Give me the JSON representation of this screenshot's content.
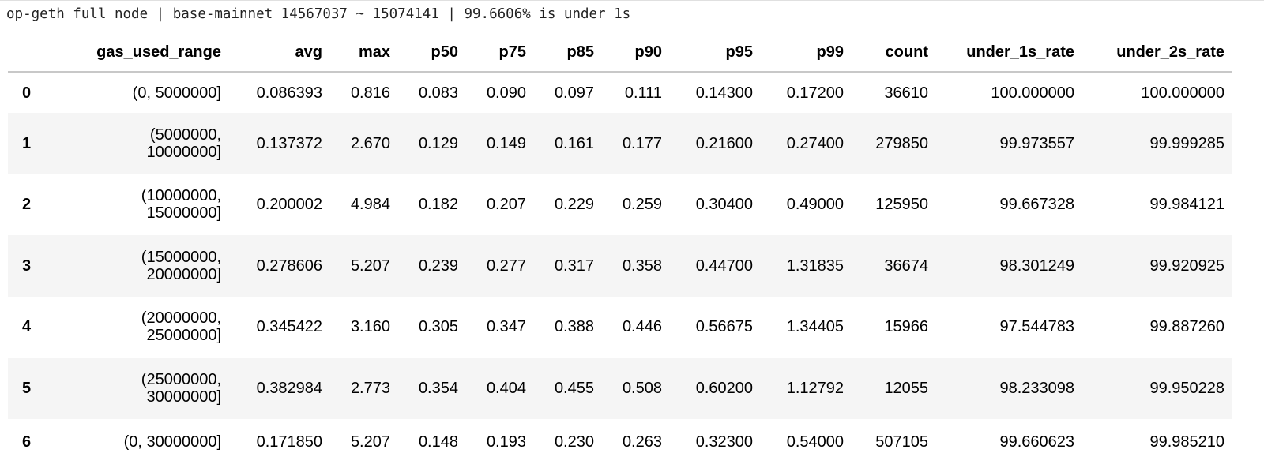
{
  "title": "op-geth full node | base-mainnet 14567037 ~ 15074141 | 99.6606% is under 1s",
  "table": {
    "columns": [
      "",
      "gas_used_range",
      "avg",
      "max",
      "p50",
      "p75",
      "p85",
      "p90",
      "p95",
      "p99",
      "count",
      "under_1s_rate",
      "under_2s_rate"
    ],
    "rows": [
      [
        "0",
        "(0, 5000000]",
        "0.086393",
        "0.816",
        "0.083",
        "0.090",
        "0.097",
        "0.111",
        "0.14300",
        "0.17200",
        "36610",
        "100.000000",
        "100.000000"
      ],
      [
        "1",
        "(5000000, 10000000]",
        "0.137372",
        "2.670",
        "0.129",
        "0.149",
        "0.161",
        "0.177",
        "0.21600",
        "0.27400",
        "279850",
        "99.973557",
        "99.999285"
      ],
      [
        "2",
        "(10000000, 15000000]",
        "0.200002",
        "4.984",
        "0.182",
        "0.207",
        "0.229",
        "0.259",
        "0.30400",
        "0.49000",
        "125950",
        "99.667328",
        "99.984121"
      ],
      [
        "3",
        "(15000000, 20000000]",
        "0.278606",
        "5.207",
        "0.239",
        "0.277",
        "0.317",
        "0.358",
        "0.44700",
        "1.31835",
        "36674",
        "98.301249",
        "99.920925"
      ],
      [
        "4",
        "(20000000, 25000000]",
        "0.345422",
        "3.160",
        "0.305",
        "0.347",
        "0.388",
        "0.446",
        "0.56675",
        "1.34405",
        "15966",
        "97.544783",
        "99.887260"
      ],
      [
        "5",
        "(25000000, 30000000]",
        "0.382984",
        "2.773",
        "0.354",
        "0.404",
        "0.455",
        "0.508",
        "0.60200",
        "1.12792",
        "12055",
        "98.233098",
        "99.950228"
      ],
      [
        "6",
        "(0, 30000000]",
        "0.171850",
        "5.207",
        "0.148",
        "0.193",
        "0.230",
        "0.263",
        "0.32300",
        "0.54000",
        "507105",
        "99.660623",
        "99.985210"
      ]
    ]
  },
  "colors": {
    "stripe": "#f5f5f5",
    "header_border": "#c8c8c8"
  }
}
